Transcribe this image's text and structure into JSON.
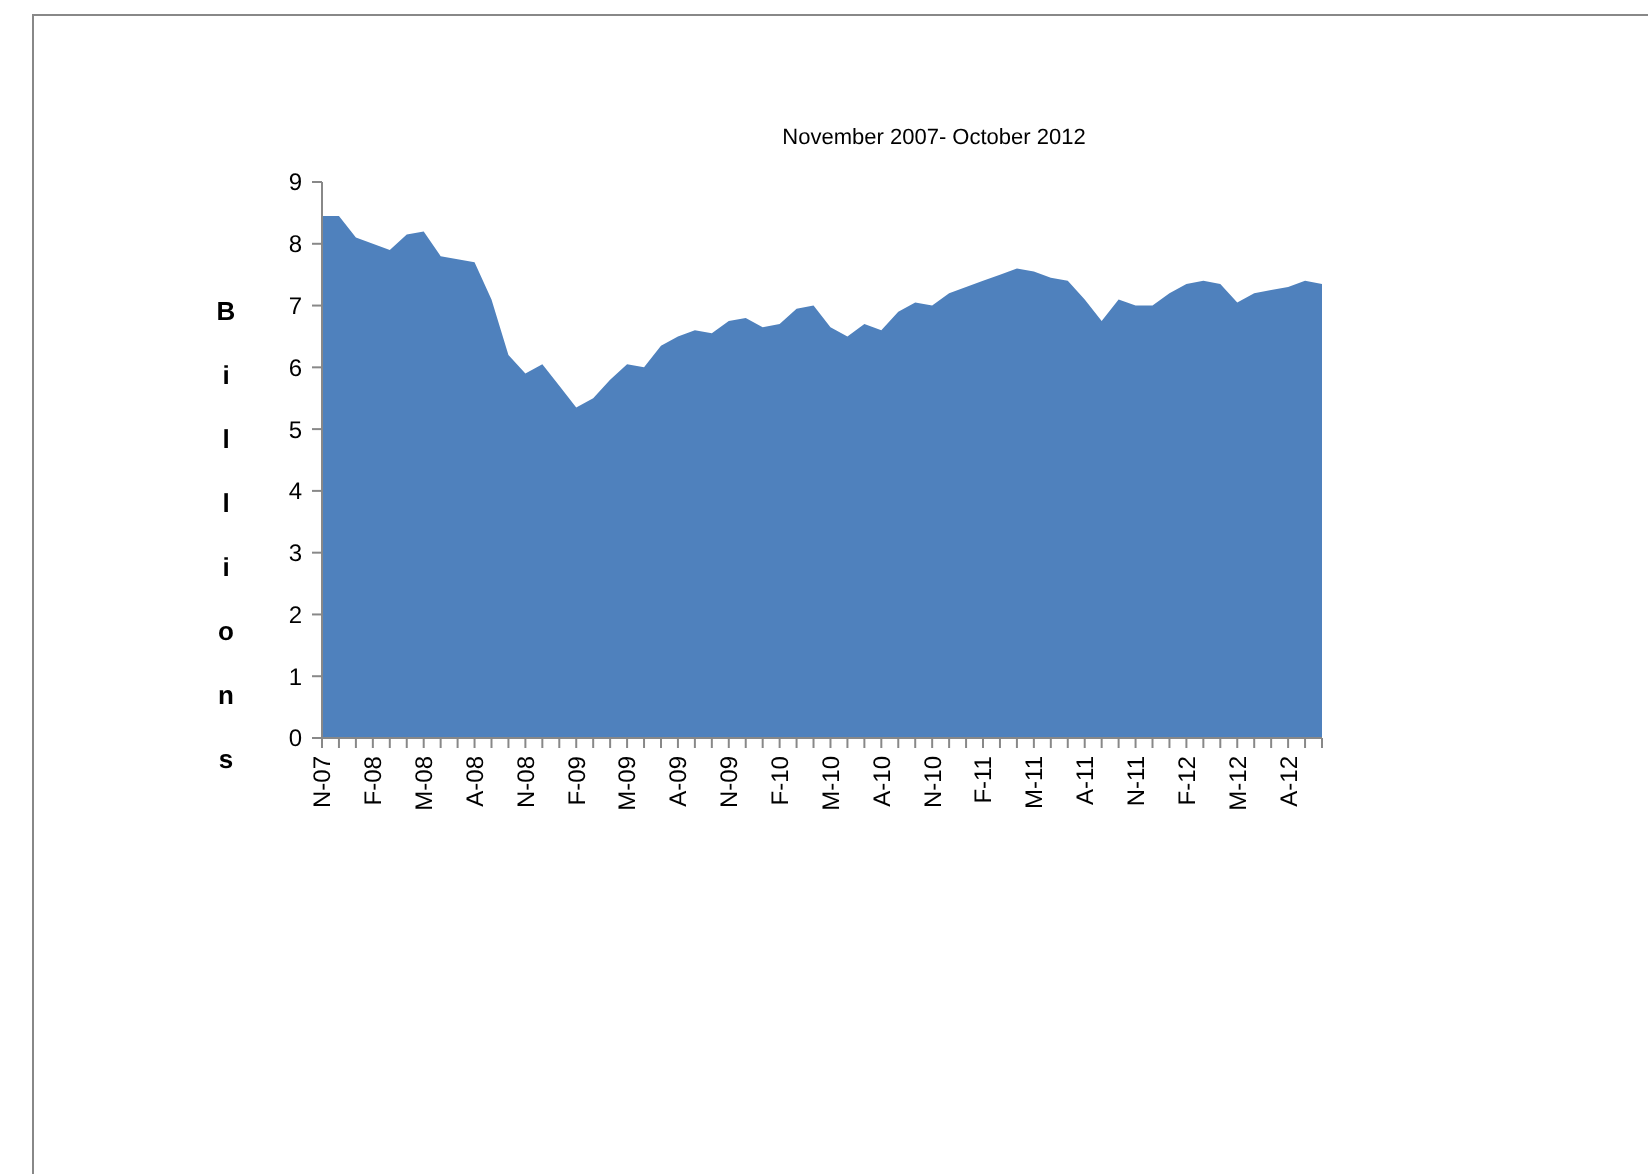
{
  "chart_data": {
    "type": "area",
    "title": "November 2007- October 2012",
    "ylabel": "Billions",
    "categories": [
      "N-07",
      null,
      null,
      "F-08",
      null,
      null,
      "M-08",
      null,
      null,
      "A-08",
      null,
      null,
      "N-08",
      null,
      null,
      "F-09",
      null,
      null,
      "M-09",
      null,
      null,
      "A-09",
      null,
      null,
      "N-09",
      null,
      null,
      "F-10",
      null,
      null,
      "M-10",
      null,
      null,
      "A-10",
      null,
      null,
      "N-10",
      null,
      null,
      "F-11",
      null,
      null,
      "M-11",
      null,
      null,
      "A-11",
      null,
      null,
      "N-11",
      null,
      null,
      "F-12",
      null,
      null,
      "M-12",
      null,
      null,
      "A-12",
      null,
      null
    ],
    "values": [
      8.45,
      8.45,
      8.1,
      8.0,
      7.9,
      8.15,
      8.2,
      7.8,
      7.75,
      7.7,
      7.1,
      6.2,
      5.9,
      6.05,
      5.7,
      5.35,
      5.5,
      5.8,
      6.05,
      6.0,
      6.35,
      6.5,
      6.6,
      6.55,
      6.75,
      6.8,
      6.65,
      6.7,
      6.95,
      7.0,
      6.65,
      6.5,
      6.7,
      6.6,
      6.9,
      7.05,
      7.0,
      7.2,
      7.3,
      7.4,
      7.5,
      7.6,
      7.55,
      7.45,
      7.4,
      7.1,
      6.75,
      7.1,
      7.0,
      7.0,
      7.2,
      7.35,
      7.4,
      7.35,
      7.05,
      7.2,
      7.25,
      7.3,
      7.4,
      7.35
    ],
    "color": "#4f81bd",
    "ylim": [
      0,
      9
    ],
    "yticks": [
      0,
      1,
      2,
      3,
      4,
      5,
      6,
      7,
      8,
      9
    ],
    "grid": false
  }
}
